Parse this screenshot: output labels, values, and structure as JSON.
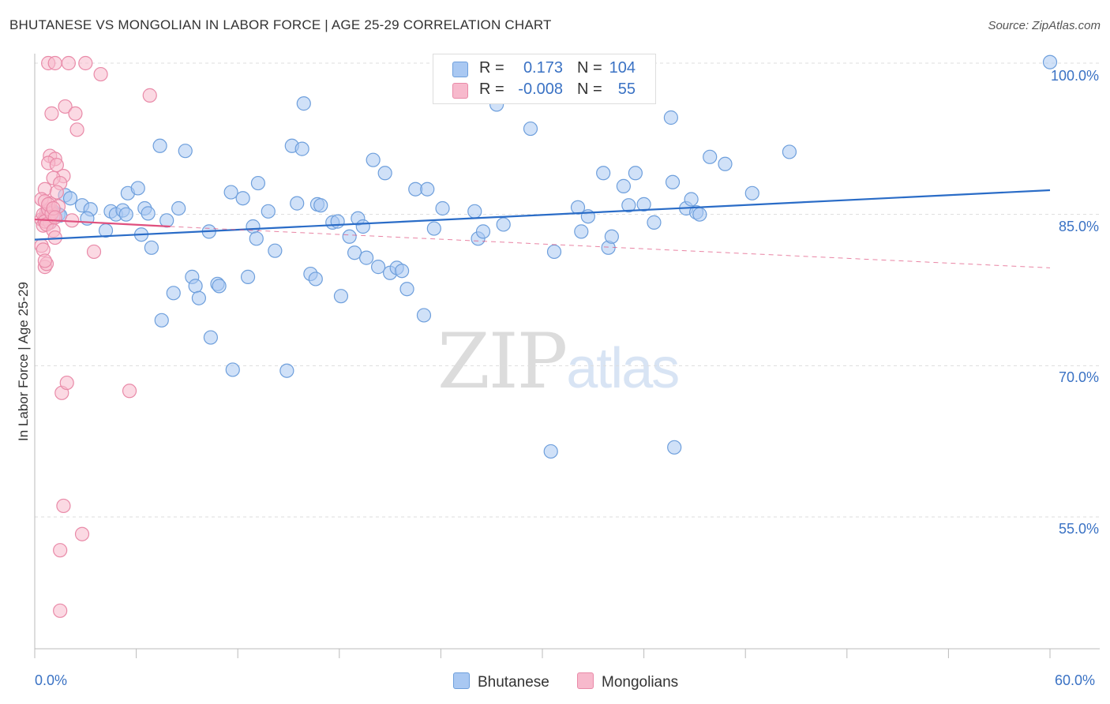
{
  "header": {
    "title": "BHUTANESE VS MONGOLIAN IN LABOR FORCE | AGE 25-29 CORRELATION CHART",
    "source": "Source: ZipAtlas.com"
  },
  "watermark": {
    "zip": "ZIP",
    "atlas": "atlas"
  },
  "legend": {
    "rows": [
      {
        "r_label": "R =",
        "r_value": "0.173",
        "n_label": "N =",
        "n_value": "104"
      },
      {
        "r_label": "R =",
        "r_value": "-0.008",
        "n_label": "N =",
        "n_value": "55"
      }
    ],
    "bottom": [
      "Bhutanese",
      "Mongolians"
    ]
  },
  "axes": {
    "ylabel": "In Labor Force | Age 25-29",
    "y_ticks": [
      "100.0%",
      "85.0%",
      "70.0%",
      "55.0%"
    ],
    "x_ticks": [
      "0.0%",
      "60.0%"
    ]
  },
  "colors": {
    "blue_fill": "#a9c8f2",
    "blue_stroke": "#6e9fdc",
    "blue_line": "#2a6cc7",
    "pink_fill": "#f7b9cc",
    "pink_stroke": "#e98aa8",
    "pink_line": "#e0507e"
  },
  "chart_data": {
    "type": "scatter",
    "title": "BHUTANESE VS MONGOLIAN IN LABOR FORCE | AGE 25-29 CORRELATION CHART",
    "xlabel": "",
    "ylabel": "In Labor Force | Age 25-29",
    "xlim": [
      0,
      60
    ],
    "ylim": [
      40,
      102
    ],
    "y_ticks": [
      55,
      70,
      85,
      100
    ],
    "x_ticks": [
      0,
      60
    ],
    "grid": "horizontal dashed",
    "legend_position": "top-center",
    "series": [
      {
        "name": "Bhutanese",
        "r": 0.173,
        "n": 104,
        "trend": {
          "x": [
            0,
            60
          ],
          "y": [
            82.5,
            87.4
          ]
        },
        "points": [
          [
            0.6,
            84.6
          ],
          [
            0.9,
            84.2
          ],
          [
            1.1,
            85.3
          ],
          [
            1.4,
            85.0
          ],
          [
            1.8,
            86.9
          ],
          [
            2.1,
            86.6
          ],
          [
            2.8,
            85.9
          ],
          [
            3.3,
            85.5
          ],
          [
            3.1,
            84.6
          ],
          [
            4.2,
            83.4
          ],
          [
            4.5,
            85.3
          ],
          [
            4.8,
            85.0
          ],
          [
            5.2,
            85.4
          ],
          [
            5.5,
            87.1
          ],
          [
            5.4,
            85.0
          ],
          [
            6.1,
            87.6
          ],
          [
            6.3,
            83.0
          ],
          [
            6.5,
            85.6
          ],
          [
            6.7,
            85.1
          ],
          [
            6.9,
            81.7
          ],
          [
            7.4,
            91.8
          ],
          [
            7.5,
            74.5
          ],
          [
            7.8,
            84.4
          ],
          [
            8.2,
            77.2
          ],
          [
            8.5,
            85.6
          ],
          [
            8.9,
            91.3
          ],
          [
            9.3,
            78.8
          ],
          [
            9.5,
            77.9
          ],
          [
            9.7,
            76.7
          ],
          [
            10.3,
            83.3
          ],
          [
            10.4,
            72.8
          ],
          [
            10.8,
            78.1
          ],
          [
            10.9,
            77.9
          ],
          [
            11.6,
            87.2
          ],
          [
            11.7,
            69.6
          ],
          [
            12.3,
            86.6
          ],
          [
            12.6,
            78.8
          ],
          [
            12.9,
            83.8
          ],
          [
            13.1,
            82.6
          ],
          [
            13.2,
            88.1
          ],
          [
            13.8,
            85.3
          ],
          [
            14.2,
            81.4
          ],
          [
            14.9,
            69.5
          ],
          [
            15.2,
            91.8
          ],
          [
            15.5,
            86.1
          ],
          [
            15.8,
            91.5
          ],
          [
            15.9,
            96.0
          ],
          [
            16.3,
            79.1
          ],
          [
            16.6,
            78.6
          ],
          [
            16.7,
            86.0
          ],
          [
            16.9,
            85.9
          ],
          [
            17.6,
            84.2
          ],
          [
            17.9,
            84.3
          ],
          [
            18.1,
            76.9
          ],
          [
            18.6,
            82.8
          ],
          [
            18.9,
            81.2
          ],
          [
            19.1,
            84.6
          ],
          [
            19.4,
            83.8
          ],
          [
            19.6,
            80.7
          ],
          [
            20.0,
            90.4
          ],
          [
            20.3,
            79.8
          ],
          [
            20.7,
            89.1
          ],
          [
            21.0,
            79.2
          ],
          [
            21.4,
            79.7
          ],
          [
            21.7,
            79.4
          ],
          [
            22.0,
            77.6
          ],
          [
            22.5,
            87.5
          ],
          [
            23.0,
            75.0
          ],
          [
            23.2,
            87.5
          ],
          [
            23.6,
            83.6
          ],
          [
            24.1,
            85.6
          ],
          [
            26.0,
            85.3
          ],
          [
            26.2,
            82.6
          ],
          [
            26.5,
            83.3
          ],
          [
            27.3,
            95.9
          ],
          [
            27.7,
            84.0
          ],
          [
            29.3,
            93.5
          ],
          [
            30.5,
            61.5
          ],
          [
            30.7,
            81.3
          ],
          [
            32.1,
            85.7
          ],
          [
            32.3,
            83.3
          ],
          [
            32.7,
            84.8
          ],
          [
            33.6,
            89.1
          ],
          [
            33.9,
            81.7
          ],
          [
            34.1,
            82.8
          ],
          [
            34.8,
            87.8
          ],
          [
            35.1,
            85.9
          ],
          [
            35.5,
            89.1
          ],
          [
            36.0,
            86.0
          ],
          [
            36.6,
            84.2
          ],
          [
            37.6,
            94.6
          ],
          [
            37.7,
            88.2
          ],
          [
            37.8,
            61.9
          ],
          [
            38.5,
            85.6
          ],
          [
            38.8,
            86.5
          ],
          [
            39.1,
            85.2
          ],
          [
            39.3,
            85.0
          ],
          [
            39.9,
            90.7
          ],
          [
            40.8,
            90.0
          ],
          [
            42.4,
            87.1
          ],
          [
            44.6,
            91.2
          ],
          [
            60.0,
            100.1
          ],
          [
            0.8,
            85.3
          ],
          [
            1.5,
            84.9
          ]
        ]
      },
      {
        "name": "Mongolians",
        "r": -0.008,
        "n": 55,
        "trend": {
          "x": [
            0,
            8
          ],
          "y": [
            84.5,
            83.8
          ]
        },
        "trend_dashed": {
          "x": [
            8,
            60
          ],
          "y": [
            83.8,
            79.7
          ]
        },
        "points": [
          [
            0.4,
            84.5
          ],
          [
            0.5,
            83.9
          ],
          [
            0.6,
            84.6
          ],
          [
            0.7,
            85.2
          ],
          [
            0.8,
            84.9
          ],
          [
            0.9,
            84.2
          ],
          [
            1.0,
            85.3
          ],
          [
            1.1,
            84.8
          ],
          [
            0.5,
            85.0
          ],
          [
            0.6,
            84.3
          ],
          [
            0.7,
            84.0
          ],
          [
            0.8,
            85.5
          ],
          [
            0.9,
            86.1
          ],
          [
            1.0,
            85.1
          ],
          [
            1.1,
            83.4
          ],
          [
            1.2,
            82.7
          ],
          [
            0.4,
            81.9
          ],
          [
            0.5,
            81.5
          ],
          [
            0.6,
            79.8
          ],
          [
            0.7,
            80.1
          ],
          [
            0.8,
            100.0
          ],
          [
            1.2,
            100.0
          ],
          [
            2.0,
            100.0
          ],
          [
            3.0,
            100.0
          ],
          [
            3.9,
            98.9
          ],
          [
            1.8,
            95.7
          ],
          [
            1.0,
            95.0
          ],
          [
            2.4,
            95.0
          ],
          [
            2.5,
            93.4
          ],
          [
            6.8,
            96.8
          ],
          [
            0.9,
            90.8
          ],
          [
            1.2,
            90.5
          ],
          [
            0.8,
            90.1
          ],
          [
            1.3,
            89.9
          ],
          [
            1.7,
            88.8
          ],
          [
            1.1,
            88.6
          ],
          [
            1.5,
            88.1
          ],
          [
            0.6,
            87.5
          ],
          [
            1.3,
            87.2
          ],
          [
            0.4,
            86.5
          ],
          [
            0.6,
            86.3
          ],
          [
            0.8,
            86.0
          ],
          [
            1.4,
            85.8
          ],
          [
            1.1,
            85.6
          ],
          [
            2.2,
            84.4
          ],
          [
            3.5,
            81.3
          ],
          [
            1.6,
            67.3
          ],
          [
            1.9,
            68.3
          ],
          [
            5.6,
            67.5
          ],
          [
            1.7,
            56.1
          ],
          [
            1.5,
            51.7
          ],
          [
            2.8,
            53.3
          ],
          [
            1.5,
            45.7
          ],
          [
            0.6,
            80.4
          ],
          [
            1.2,
            84.7
          ]
        ]
      }
    ]
  }
}
